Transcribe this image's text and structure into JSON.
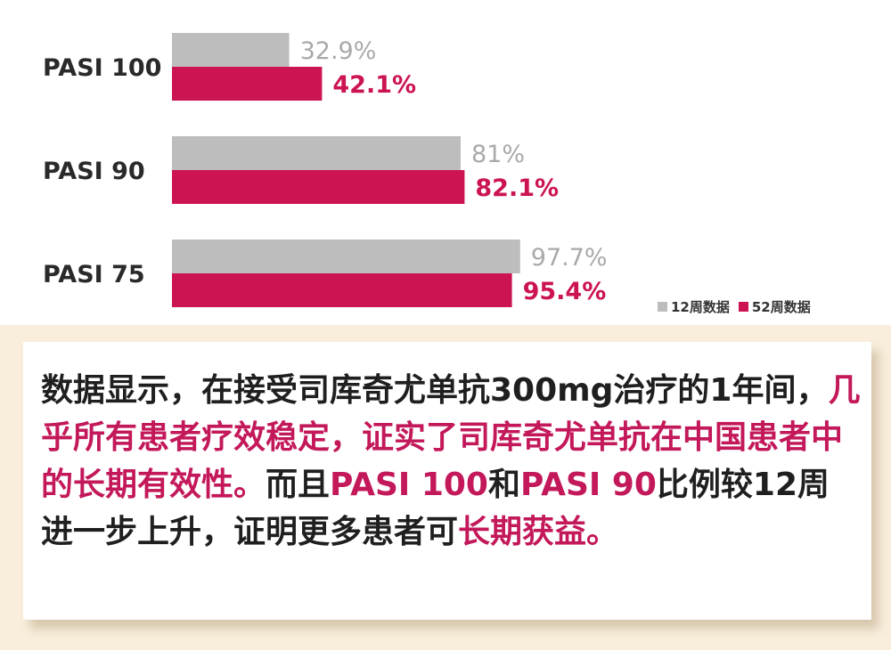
{
  "colors": {
    "week12": "#bdbdbd",
    "week52": "#cc1452",
    "label_week12": "#a9a9a9",
    "text_highlight": "#c3185a"
  },
  "chart_data": {
    "type": "bar",
    "orientation": "horizontal",
    "categories": [
      "PASI 100",
      "PASI 90",
      "PASI 75"
    ],
    "series": [
      {
        "name": "12周数据",
        "values": [
          32.9,
          81,
          97.7
        ],
        "labels": [
          "32.9%",
          "81%",
          "97.7%"
        ]
      },
      {
        "name": "52周数据",
        "values": [
          42.1,
          82.1,
          95.4
        ],
        "labels": [
          "42.1%",
          "82.1%",
          "95.4%"
        ]
      }
    ],
    "xlim": [
      0,
      100
    ],
    "grid": false,
    "legend": "bottom-right"
  },
  "legend": {
    "week12": "12周数据",
    "week52": "52周数据"
  },
  "text_panel": {
    "segments": [
      {
        "text": "数据显示，在接受司库奇尤单抗300mg治疗的1年间，",
        "highlight": false
      },
      {
        "text": "几乎所有患者疗效稳定，证实了司库奇尤单抗在中国患者中的长期有效性。",
        "highlight": true
      },
      {
        "text": "而且",
        "highlight": false
      },
      {
        "text": "PASI 100",
        "highlight": true
      },
      {
        "text": "和",
        "highlight": false
      },
      {
        "text": "PASI 90",
        "highlight": true
      },
      {
        "text": "比例较12周进一步上升，证明更多患者可",
        "highlight": false
      },
      {
        "text": "长期获益。",
        "highlight": true
      }
    ]
  }
}
